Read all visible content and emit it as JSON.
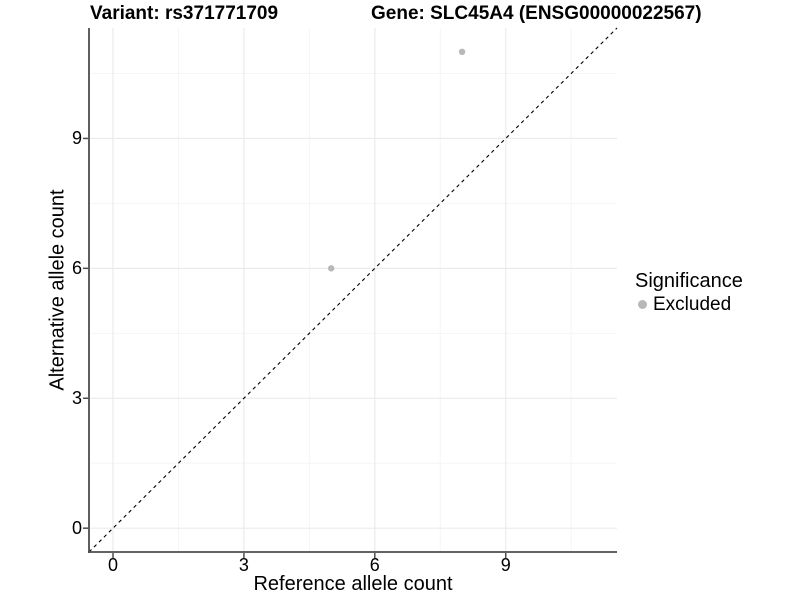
{
  "chart_data": {
    "type": "scatter",
    "title_left": "Variant: rs371771709",
    "title_right": "Gene: SLC45A4 (ENSG00000022567)",
    "xlabel": "Reference allele count",
    "ylabel": "Alternative allele count",
    "xlim": [
      -0.55,
      11.55
    ],
    "ylim": [
      -0.55,
      11.55
    ],
    "x_ticks": [
      0,
      3,
      6,
      9
    ],
    "y_ticks": [
      0,
      3,
      6,
      9
    ],
    "x_minor_ticks": [
      1.5,
      4.5,
      7.5,
      10.5
    ],
    "y_minor_ticks": [
      1.5,
      4.5,
      7.5,
      10.5
    ],
    "grid": "major+minor",
    "reference_line": {
      "kind": "identity",
      "slope": 1,
      "intercept": 0,
      "style": "dashed",
      "color": "#000000"
    },
    "series": [
      {
        "name": "Excluded",
        "color": "#b8b8b8",
        "points": [
          {
            "x": 5,
            "y": 6
          },
          {
            "x": 8,
            "y": 11
          }
        ]
      }
    ],
    "legend": {
      "title": "Significance",
      "position": "right",
      "items": [
        {
          "label": "Excluded",
          "color": "#b8b8b8"
        }
      ]
    },
    "colors": {
      "grid_major": "#ebebeb",
      "grid_minor": "#f4f4f4",
      "axis_line": "#4d4d4d",
      "tick_mark": "#4d4d4d",
      "text": "#000000",
      "background": "#ffffff"
    }
  }
}
